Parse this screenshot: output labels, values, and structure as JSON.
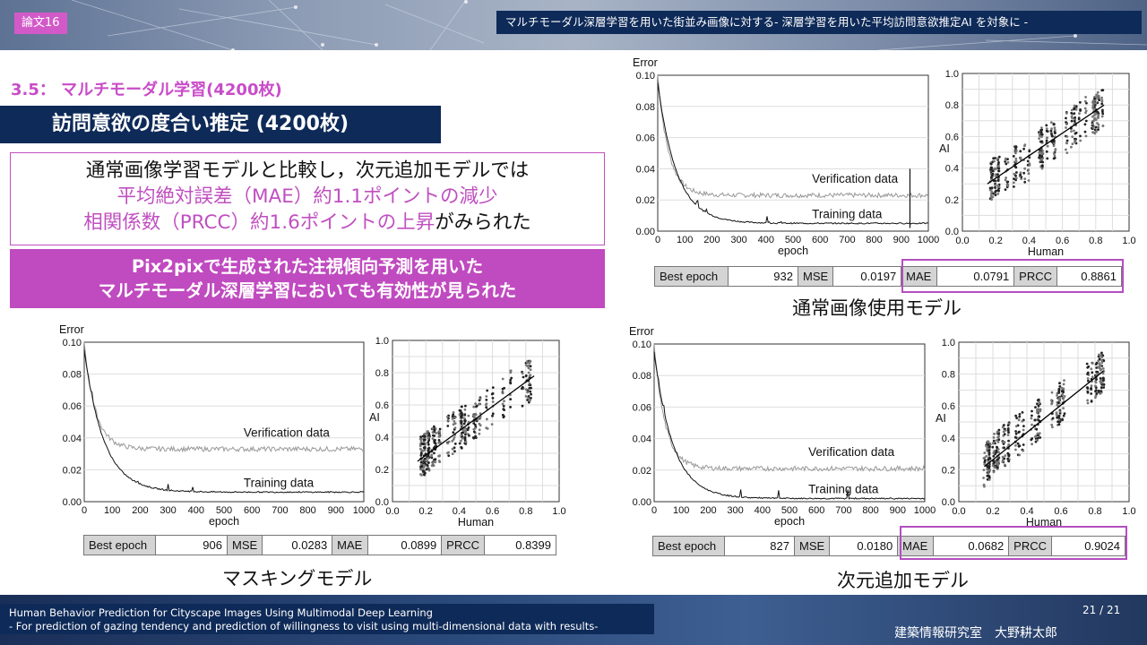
{
  "header": {
    "tag": "論文16",
    "title": "マルチモーダル深層学習を用いた街並み画像に対する- 深層学習を用いた平均訪問意欲推定AI を対象に -"
  },
  "section": "3.5： マルチモーダル学習(4200枚)",
  "heading": "訪問意欲の度合い推定 (4200枚)",
  "summary": {
    "line1": "通常画像学習モデルと比較し，次元追加モデルでは",
    "line2": "平均絶対誤差（MAE）約1.1ポイントの減少",
    "line3_highlight": "相関係数（PRCC）約1.6ポイントの上昇",
    "line3_tail": "がみられた"
  },
  "conclusion": {
    "line1": "Pix2pixで生成された注視傾向予測を用いた",
    "line2": "マルチモーダル深層学習においても有効性が見られた"
  },
  "colors": {
    "accent": "#c050c0",
    "navy": "#0e2a58"
  },
  "error_axis": {
    "label": "Error",
    "xlabel": "epoch",
    "y_ticks": [
      "0.10",
      "0.08",
      "0.06",
      "0.04",
      "0.02",
      "0.00"
    ],
    "x_ticks": [
      "0",
      "100",
      "200",
      "300",
      "400",
      "500",
      "600",
      "700",
      "800",
      "900",
      "1000"
    ]
  },
  "scatter_axis": {
    "ylabel": "AI",
    "xlabel": "Human",
    "ticks": [
      "0.0",
      "0.2",
      "0.4",
      "0.6",
      "0.8",
      "1.0"
    ]
  },
  "legend": {
    "verification": "Verification data",
    "training": "Training data"
  },
  "metric_labels": {
    "best_epoch": "Best epoch",
    "mse": "MSE",
    "mae": "MAE",
    "prcc": "PRCC"
  },
  "models": [
    {
      "key": "normal",
      "caption": "通常画像使用モデル",
      "best_epoch": "932",
      "mse": "0.0197",
      "mae": "0.0791",
      "prcc": "0.8861",
      "train_final": 0.005,
      "verif_final": 0.023,
      "spike_epoch": 932
    },
    {
      "key": "masking",
      "caption": "マスキングモデル",
      "best_epoch": "906",
      "mse": "0.0283",
      "mae": "0.0899",
      "prcc": "0.8399",
      "train_final": 0.006,
      "verif_final": 0.033
    },
    {
      "key": "dimension",
      "caption": "次元追加モデル",
      "best_epoch": "827",
      "mse": "0.0180",
      "mae": "0.0682",
      "prcc": "0.9024",
      "train_final": 0.002,
      "verif_final": 0.021
    }
  ],
  "chart_data": [
    {
      "type": "line",
      "title": "",
      "ylabel": "Error",
      "xlabel": "epoch",
      "xlim": [
        0,
        1000
      ],
      "ylim": [
        0,
        0.1
      ],
      "series": [
        {
          "name": "Verification data",
          "x": [
            0,
            50,
            100,
            200,
            400,
            600,
            800,
            1000
          ],
          "values": [
            0.1,
            0.05,
            0.035,
            0.027,
            0.024,
            0.023,
            0.023,
            0.023
          ]
        },
        {
          "name": "Training data",
          "x": [
            0,
            50,
            100,
            200,
            400,
            600,
            800,
            1000
          ],
          "values": [
            0.09,
            0.035,
            0.02,
            0.012,
            0.008,
            0.006,
            0.005,
            0.005
          ]
        }
      ]
    },
    {
      "type": "scatter",
      "title": "",
      "ylabel": "AI",
      "xlabel": "Human",
      "xlim": [
        0,
        1
      ],
      "ylim": [
        0,
        1
      ],
      "series": [
        {
          "name": "",
          "x": [
            0.15,
            0.2,
            0.3,
            0.4,
            0.5,
            0.6,
            0.7,
            0.8,
            0.85
          ],
          "values": [
            0.3,
            0.35,
            0.4,
            0.45,
            0.55,
            0.6,
            0.7,
            0.75,
            0.8
          ]
        }
      ]
    },
    {
      "type": "line",
      "title": "",
      "ylabel": "Error",
      "xlabel": "epoch",
      "xlim": [
        0,
        1000
      ],
      "ylim": [
        0,
        0.1
      ],
      "series": [
        {
          "name": "Verification data",
          "x": [
            0,
            50,
            100,
            200,
            400,
            600,
            800,
            1000
          ],
          "values": [
            0.09,
            0.045,
            0.038,
            0.034,
            0.033,
            0.033,
            0.033,
            0.033
          ]
        },
        {
          "name": "Training data",
          "x": [
            0,
            50,
            100,
            200,
            400,
            600,
            800,
            1000
          ],
          "values": [
            0.09,
            0.04,
            0.025,
            0.012,
            0.008,
            0.007,
            0.006,
            0.006
          ]
        }
      ]
    },
    {
      "type": "scatter",
      "title": "",
      "ylabel": "AI",
      "xlabel": "Human",
      "xlim": [
        0,
        1
      ],
      "ylim": [
        0,
        1
      ],
      "series": [
        {
          "name": "",
          "x": [
            0.15,
            0.2,
            0.3,
            0.4,
            0.5,
            0.6,
            0.7,
            0.8,
            0.85
          ],
          "values": [
            0.25,
            0.3,
            0.38,
            0.45,
            0.52,
            0.6,
            0.68,
            0.73,
            0.78
          ]
        }
      ]
    },
    {
      "type": "line",
      "title": "",
      "ylabel": "Error",
      "xlabel": "epoch",
      "xlim": [
        0,
        1000
      ],
      "ylim": [
        0,
        0.1
      ],
      "series": [
        {
          "name": "Verification data",
          "x": [
            0,
            50,
            100,
            200,
            400,
            600,
            800,
            1000
          ],
          "values": [
            0.09,
            0.04,
            0.03,
            0.025,
            0.022,
            0.021,
            0.021,
            0.021
          ]
        },
        {
          "name": "Training data",
          "x": [
            0,
            50,
            100,
            200,
            400,
            600,
            800,
            1000
          ],
          "values": [
            0.09,
            0.03,
            0.015,
            0.008,
            0.004,
            0.003,
            0.002,
            0.002
          ]
        }
      ]
    },
    {
      "type": "scatter",
      "title": "",
      "ylabel": "AI",
      "xlabel": "Human",
      "xlim": [
        0,
        1
      ],
      "ylim": [
        0,
        1
      ],
      "series": [
        {
          "name": "",
          "x": [
            0.15,
            0.2,
            0.3,
            0.4,
            0.5,
            0.6,
            0.7,
            0.8,
            0.85
          ],
          "values": [
            0.22,
            0.3,
            0.38,
            0.46,
            0.55,
            0.62,
            0.7,
            0.77,
            0.82
          ]
        }
      ]
    }
  ],
  "footer": {
    "line1": "Human Behavior Prediction for Cityscape Images Using Multimodal Deep Learning",
    "line2": "- For prediction of gazing tendency and prediction of willingness to visit using multi-dimensional data with results-",
    "page": "21 / 21",
    "lab": "建築情報研究室　大野耕太郎"
  }
}
